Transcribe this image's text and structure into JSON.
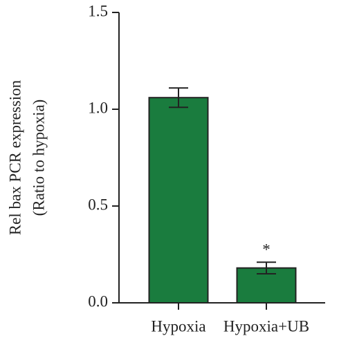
{
  "chart_data": {
    "type": "bar",
    "ylabel": [
      "Rel bax PCR expression",
      "(Ratio to hypoxia)"
    ],
    "categories": [
      "Hypoxia",
      "Hypoxia+UB"
    ],
    "values": [
      1.06,
      0.18
    ],
    "errors": [
      0.05,
      0.03
    ],
    "annotations": [
      null,
      "*"
    ],
    "color": "#1a7c3e",
    "ylim": [
      0,
      1.5
    ],
    "yticks": [
      {
        "value": 0,
        "label": "0.0"
      },
      0.5,
      {
        "value": 1,
        "label": "1.0"
      },
      1.5
    ]
  }
}
